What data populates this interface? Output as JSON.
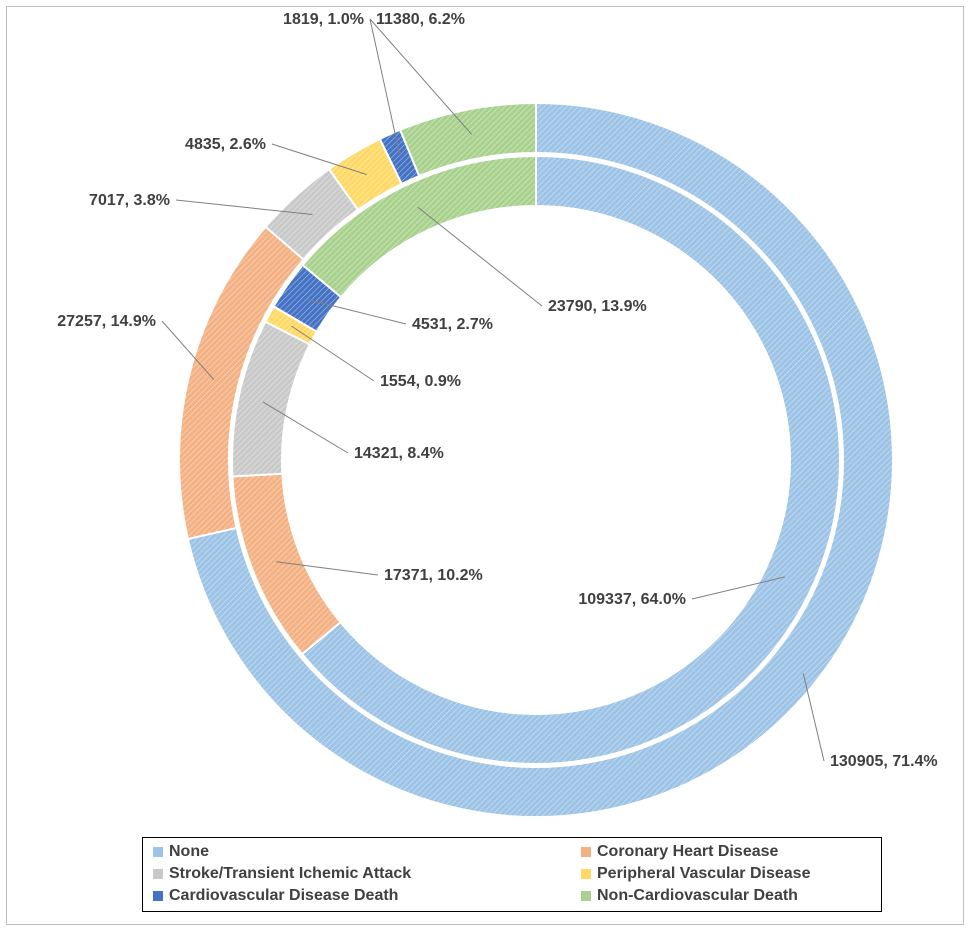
{
  "chart_data": {
    "type": "donut",
    "title": "",
    "categories": [
      "None",
      "Coronary Heart Disease",
      "Stroke/Transient Ichemic Attack",
      "Peripheral Vascular Disease",
      "Cardiovascular Disease Death",
      "Non-Cardiovascular Death"
    ],
    "colors": [
      "#9dc3e6",
      "#f4b183",
      "#c9c9c9",
      "#ffd966",
      "#4472c4",
      "#a9d18e"
    ],
    "series": [
      {
        "ring": "outer",
        "values": [
          130905,
          27257,
          7017,
          4835,
          1819,
          11380
        ],
        "labels": [
          "130905, 71.4%",
          "27257, 14.9%",
          "7017, 3.8%",
          "4835, 2.6%",
          "1819, 1.0%",
          "11380, 6.2%"
        ]
      },
      {
        "ring": "inner",
        "values": [
          109337,
          17371,
          14321,
          1554,
          4531,
          23790
        ],
        "labels": [
          "109337, 64.0%",
          "17371, 10.2%",
          "14321, 8.4%",
          "1554, 0.9%",
          "4531, 2.7%",
          "23790, 13.9%"
        ]
      }
    ],
    "legend": {
      "position": "bottom",
      "entries": [
        "None",
        "Coronary Heart Disease",
        "Stroke/Transient Ichemic Attack",
        "Peripheral Vascular Disease",
        "Cardiovascular Disease Death",
        "Non-Cardiovascular Death"
      ]
    }
  }
}
